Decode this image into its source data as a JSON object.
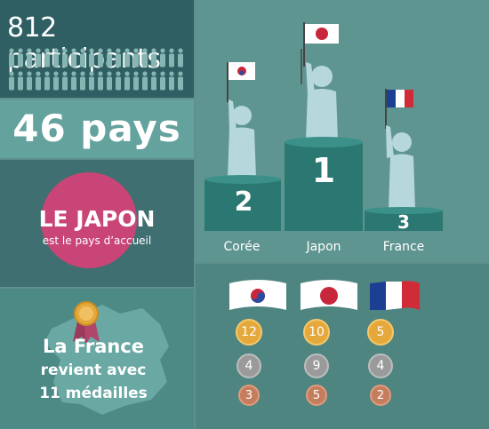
{
  "participants": {
    "count_text": "812 participants"
  },
  "countries": {
    "text": "46 pays"
  },
  "host": {
    "title": "LE JAPON",
    "subtitle": "est le pays d’accueil"
  },
  "france": {
    "line1": "La France",
    "line2": "revient avec",
    "line3": "11 médailles"
  },
  "podium": {
    "first": {
      "rank": "1",
      "country": "Japon"
    },
    "second": {
      "rank": "2",
      "country": "Corée"
    },
    "third": {
      "rank": "3",
      "country": "France"
    }
  },
  "medals": {
    "korea": {
      "gold": "12",
      "silver": "4",
      "bronze": "3"
    },
    "japan": {
      "gold": "10",
      "silver": "9",
      "bronze": "5"
    },
    "france": {
      "gold": "5",
      "silver": "4",
      "bronze": "2"
    }
  },
  "colors": {
    "gold": "#e5a83c",
    "silver": "#9a9a9a",
    "bronze": "#c47e5e",
    "host_circle": "#c94577"
  }
}
